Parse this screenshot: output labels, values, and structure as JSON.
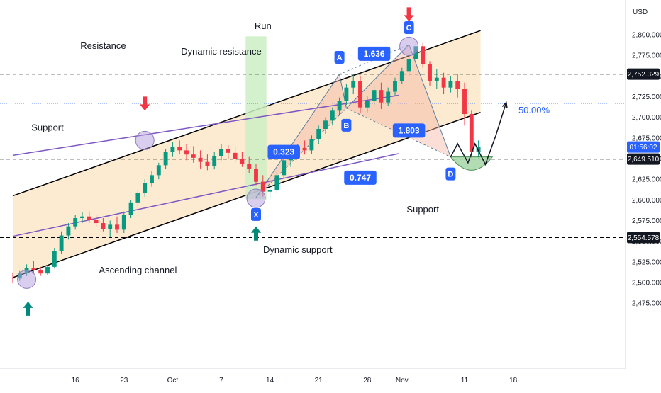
{
  "chart_data": {
    "type": "candlestick",
    "currency": "USD",
    "y_axis": {
      "range": [
        2462,
        2818
      ],
      "ticks": [
        "2,800.000",
        "2,775.000",
        "2,750.000",
        "2,725.000",
        "2,700.000",
        "2,675.000",
        "2,650.000",
        "2,625.000",
        "2,600.000",
        "2,575.000",
        "2,550.000",
        "2,525.000",
        "2,500.000",
        "2,475.000"
      ],
      "tick_values": [
        2800,
        2775,
        2750,
        2725,
        2700,
        2675,
        2650,
        2625,
        2600,
        2575,
        2550,
        2525,
        2500,
        2475
      ]
    },
    "x_axis": {
      "labels": [
        {
          "text": "16",
          "day": 9
        },
        {
          "text": "23",
          "day": 16
        },
        {
          "text": "Oct",
          "day": 23
        },
        {
          "text": "7",
          "day": 30
        },
        {
          "text": "14",
          "day": 37
        },
        {
          "text": "21",
          "day": 44
        },
        {
          "text": "28",
          "day": 51
        },
        {
          "text": "Nov",
          "day": 56
        },
        {
          "text": "11",
          "day": 65
        },
        {
          "text": "18",
          "day": 72
        }
      ]
    },
    "price_labels": [
      {
        "text": "2,752.329",
        "value": 2752.329,
        "style": "dark"
      },
      {
        "text": "2,649.510",
        "value": 2649.51,
        "style": "dark"
      },
      {
        "text": "2,554.578",
        "value": 2554.578,
        "style": "dark"
      },
      {
        "text": "01:56:02",
        "value": 2664,
        "style": "blue"
      }
    ],
    "horizontal_levels": [
      2752.329,
      2649.51,
      2554.578
    ],
    "current_price_line": 2717,
    "candles_ohlc": [
      [
        2506,
        2512,
        2500,
        2505
      ],
      [
        2505,
        2514,
        2502,
        2511
      ],
      [
        2511,
        2522,
        2508,
        2518
      ],
      [
        2518,
        2526,
        2512,
        2515
      ],
      [
        2515,
        2519,
        2508,
        2511
      ],
      [
        2511,
        2521,
        2509,
        2519
      ],
      [
        2519,
        2542,
        2517,
        2538
      ],
      [
        2538,
        2562,
        2535,
        2557
      ],
      [
        2557,
        2572,
        2552,
        2568
      ],
      [
        2568,
        2582,
        2564,
        2578
      ],
      [
        2578,
        2585,
        2572,
        2580
      ],
      [
        2580,
        2586,
        2572,
        2576
      ],
      [
        2576,
        2582,
        2568,
        2572
      ],
      [
        2572,
        2578,
        2562,
        2565
      ],
      [
        2565,
        2575,
        2555,
        2570
      ],
      [
        2570,
        2580,
        2560,
        2564
      ],
      [
        2564,
        2586,
        2560,
        2582
      ],
      [
        2582,
        2600,
        2578,
        2597
      ],
      [
        2597,
        2612,
        2592,
        2608
      ],
      [
        2608,
        2625,
        2604,
        2620
      ],
      [
        2620,
        2635,
        2616,
        2630
      ],
      [
        2630,
        2645,
        2625,
        2642
      ],
      [
        2642,
        2662,
        2638,
        2658
      ],
      [
        2658,
        2670,
        2652,
        2664
      ],
      [
        2664,
        2672,
        2656,
        2660
      ],
      [
        2660,
        2668,
        2648,
        2655
      ],
      [
        2655,
        2665,
        2645,
        2651
      ],
      [
        2651,
        2660,
        2638,
        2646
      ],
      [
        2646,
        2655,
        2636,
        2641
      ],
      [
        2641,
        2658,
        2637,
        2653
      ],
      [
        2653,
        2668,
        2648,
        2662
      ],
      [
        2662,
        2666,
        2650,
        2657
      ],
      [
        2657,
        2664,
        2645,
        2650
      ],
      [
        2650,
        2658,
        2640,
        2644
      ],
      [
        2644,
        2652,
        2632,
        2638
      ],
      [
        2638,
        2644,
        2618,
        2622
      ],
      [
        2622,
        2630,
        2604,
        2610
      ],
      [
        2610,
        2618,
        2600,
        2612
      ],
      [
        2612,
        2634,
        2608,
        2630
      ],
      [
        2630,
        2652,
        2626,
        2648
      ],
      [
        2648,
        2662,
        2640,
        2655
      ],
      [
        2655,
        2668,
        2650,
        2663
      ],
      [
        2663,
        2672,
        2655,
        2660
      ],
      [
        2660,
        2678,
        2656,
        2674
      ],
      [
        2674,
        2690,
        2668,
        2686
      ],
      [
        2686,
        2700,
        2680,
        2696
      ],
      [
        2696,
        2712,
        2690,
        2708
      ],
      [
        2708,
        2724,
        2702,
        2720
      ],
      [
        2720,
        2740,
        2715,
        2736
      ],
      [
        2736,
        2752,
        2728,
        2744
      ],
      [
        2744,
        2750,
        2705,
        2712
      ],
      [
        2712,
        2726,
        2706,
        2720
      ],
      [
        2720,
        2738,
        2714,
        2733
      ],
      [
        2733,
        2742,
        2710,
        2718
      ],
      [
        2718,
        2736,
        2714,
        2731
      ],
      [
        2731,
        2748,
        2726,
        2744
      ],
      [
        2744,
        2760,
        2740,
        2756
      ],
      [
        2756,
        2776,
        2750,
        2770
      ],
      [
        2770,
        2790,
        2764,
        2786
      ],
      [
        2786,
        2790,
        2760,
        2764
      ],
      [
        2764,
        2768,
        2738,
        2744
      ],
      [
        2744,
        2758,
        2734,
        2748
      ],
      [
        2748,
        2754,
        2728,
        2736
      ],
      [
        2736,
        2750,
        2730,
        2744
      ],
      [
        2744,
        2752,
        2724,
        2734
      ],
      [
        2734,
        2742,
        2690,
        2704
      ],
      [
        2704,
        2708,
        2650,
        2658
      ],
      [
        2658,
        2672,
        2650,
        2664
      ]
    ],
    "channel": {
      "lower": [
        [
          0,
          2506
        ],
        [
          67.3,
          2706
        ]
      ],
      "upper": [
        [
          0,
          2605
        ],
        [
          67.3,
          2805
        ]
      ],
      "fill": "#fbe3c1"
    },
    "dynamic_resistance": [
      [
        0,
        2654
      ],
      [
        55.5,
        2726.6
      ]
    ],
    "dynamic_support": [
      [
        0,
        2556
      ],
      [
        55.5,
        2656
      ]
    ],
    "pattern": {
      "points": [
        {
          "label": "X",
          "day": 35,
          "price": 2603
        },
        {
          "label": "A",
          "day": 47,
          "price": 2752
        },
        {
          "label": "B",
          "day": 48,
          "price": 2711
        },
        {
          "label": "C",
          "day": 57,
          "price": 2788
        },
        {
          "label": "D",
          "day": 63,
          "price": 2652
        }
      ],
      "ratios": [
        {
          "text": "0.323",
          "day": 39,
          "price": 2658
        },
        {
          "text": "1.636",
          "day": 52,
          "price": 2777
        },
        {
          "text": "1.803",
          "day": 57,
          "price": 2684
        },
        {
          "text": "0.747",
          "day": 50,
          "price": 2627
        }
      ]
    },
    "projection": [
      [
        63,
        2652
      ],
      [
        64,
        2668
      ],
      [
        65.5,
        2645
      ],
      [
        66.5,
        2668
      ],
      [
        68,
        2643
      ],
      [
        69.5,
        2678
      ],
      [
        71,
        2718
      ]
    ],
    "cup": {
      "day": 66,
      "price": 2632
    },
    "annotations": [
      {
        "text": "Resistance",
        "day": 13,
        "price": 2783
      },
      {
        "text": "Dynamic resistance",
        "day": 30,
        "price": 2776
      },
      {
        "text": "Support",
        "day": 5,
        "price": 2684
      },
      {
        "text": "Ascending channel",
        "day": 18,
        "price": 2511
      },
      {
        "text": "Run",
        "day": 36,
        "price": 2807
      },
      {
        "text": "Support",
        "day": 59,
        "price": 2585
      },
      {
        "text": "Dynamic support",
        "day": 41,
        "price": 2536
      },
      {
        "text": "50.00%",
        "day": 75,
        "price": 2705
      }
    ],
    "signals": [
      {
        "type": "down",
        "day": 19,
        "price": 2708
      },
      {
        "type": "down",
        "day": 57,
        "price": 2816
      },
      {
        "type": "up",
        "day": 2.2,
        "price": 2477
      },
      {
        "type": "up",
        "day": 35,
        "price": 2568
      }
    ],
    "highlight_circles": [
      {
        "day": 2,
        "price": 2504
      },
      {
        "day": 19,
        "price": 2672
      },
      {
        "day": 35,
        "price": 2602
      },
      {
        "day": 57,
        "price": 2786
      }
    ],
    "run_band": {
      "from_day": 33.5,
      "to_day": 36.5,
      "top": 2798,
      "bottom": 2601
    },
    "colors": {
      "up": "#089981",
      "down": "#f23645",
      "channel_line": "#000000",
      "purple_line": "#7e57c2",
      "blue_line": "#3f51d4",
      "pattern_fill": "#f7b5a2",
      "label_blue": "#2962ff",
      "run_band": "#ccefc4",
      "cup_fill": "#a5d6a7",
      "cup_stroke": "#2e7d32",
      "circle": "#b39ddb",
      "circle_stroke": "#8e7cc3",
      "signal_down": "#f23645",
      "signal_up": "#00897b"
    }
  }
}
